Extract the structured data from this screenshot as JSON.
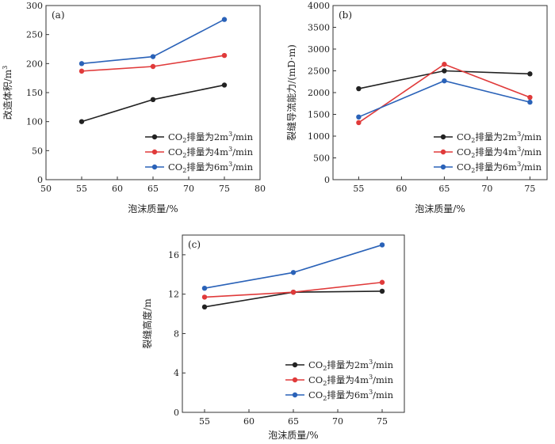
{
  "colors": {
    "series_0": "#222222",
    "series_1": "#e03a3a",
    "series_2": "#2a62b8"
  },
  "chart_data": [
    {
      "type": "line",
      "panel": "(a)",
      "xlabel": "泡沫质量/%",
      "ylabel": "改造体积/m",
      "ylabel_sup": "3",
      "x": [
        55,
        65,
        75
      ],
      "xlim": [
        50,
        80
      ],
      "xticks": [
        50,
        55,
        60,
        65,
        70,
        75,
        80
      ],
      "ylim": [
        0,
        300
      ],
      "yticks": [
        0,
        50,
        100,
        150,
        200,
        250,
        300
      ],
      "series": [
        {
          "name": "CO2排量为2m3/min",
          "pre": "CO",
          "sub": "2",
          "mid": "排量为2m",
          "sup": "3",
          "post": "/min",
          "values": [
            100,
            138,
            163
          ]
        },
        {
          "name": "CO2排量为4m3/min",
          "pre": "CO",
          "sub": "2",
          "mid": "排量为4m",
          "sup": "3",
          "post": "/min",
          "values": [
            187,
            195,
            214
          ]
        },
        {
          "name": "CO2排量为6m3/min",
          "pre": "CO",
          "sub": "2",
          "mid": "排量为6m",
          "sup": "3",
          "post": "/min",
          "values": [
            200,
            212,
            276
          ]
        }
      ],
      "legend": "bottom-right"
    },
    {
      "type": "line",
      "panel": "(b)",
      "xlabel": "泡沫质量/%",
      "ylabel": "裂缝导流能力/(mD·m)",
      "x": [
        55,
        65,
        75
      ],
      "xlim": [
        52,
        77
      ],
      "xticks": [
        55,
        60,
        65,
        70,
        75
      ],
      "ylim": [
        0,
        4000
      ],
      "yticks": [
        0,
        500,
        1000,
        1500,
        2000,
        2500,
        3000,
        3500,
        4000
      ],
      "series": [
        {
          "name": "CO2排量为2m3/min",
          "pre": "CO",
          "sub": "2",
          "mid": "排量为2m",
          "sup": "3",
          "post": "/min",
          "values": [
            2090,
            2500,
            2430
          ]
        },
        {
          "name": "CO2排量为4m3/min",
          "pre": "CO",
          "sub": "2",
          "mid": "排量为4m",
          "sup": "3",
          "post": "/min",
          "values": [
            1310,
            2650,
            1890
          ]
        },
        {
          "name": "CO2排量为6m3/min",
          "pre": "CO",
          "sub": "2",
          "mid": "排量为6m",
          "sup": "3",
          "post": "/min",
          "values": [
            1440,
            2270,
            1780
          ]
        }
      ],
      "legend": "bottom-right"
    },
    {
      "type": "line",
      "panel": "(c)",
      "xlabel": "泡沫质量/%",
      "ylabel": "裂缝高度/m",
      "x": [
        55,
        65,
        75
      ],
      "xlim": [
        52.5,
        77.5
      ],
      "xticks": [
        55,
        60,
        65,
        70,
        75
      ],
      "ylim": [
        0,
        18
      ],
      "yticks": [
        0,
        4,
        8,
        12,
        16
      ],
      "series": [
        {
          "name": "CO2排量为2m3/min",
          "pre": "CO",
          "sub": "2",
          "mid": "排量为2m",
          "sup": "3",
          "post": "/min",
          "values": [
            10.7,
            12.2,
            12.3
          ]
        },
        {
          "name": "CO2排量为4m3/min",
          "pre": "CO",
          "sub": "2",
          "mid": "排量为4m",
          "sup": "3",
          "post": "/min",
          "values": [
            11.7,
            12.2,
            13.2
          ]
        },
        {
          "name": "CO2排量为6m3/min",
          "pre": "CO",
          "sub": "2",
          "mid": "排量为6m",
          "sup": "3",
          "post": "/min",
          "values": [
            12.6,
            14.2,
            17.0
          ]
        }
      ],
      "legend": "bottom-right"
    }
  ]
}
